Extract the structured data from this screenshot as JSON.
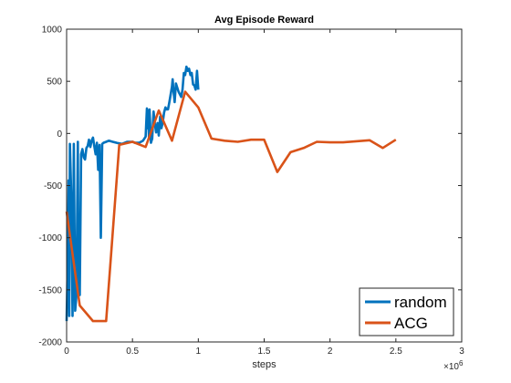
{
  "chart_data": {
    "type": "line",
    "title": "Avg Episode Reward",
    "xlabel": "steps",
    "ylabel": "",
    "x_multiplier": "×10",
    "x_exponent": "6",
    "xlim": [
      0,
      3
    ],
    "ylim": [
      -2000,
      1000
    ],
    "xticks": [
      0,
      0.5,
      1,
      1.5,
      2,
      2.5,
      3
    ],
    "xtick_labels": [
      "0",
      "0.5",
      "1",
      "1.5",
      "2",
      "2.5",
      "3"
    ],
    "yticks": [
      -2000,
      -1500,
      -1000,
      -500,
      0,
      500,
      1000
    ],
    "ytick_labels": [
      "-2000",
      "-1500",
      "-1000",
      "-500",
      "0",
      "500",
      "1000"
    ],
    "grid": false,
    "legend_position": "bottom-right",
    "series": [
      {
        "name": "random",
        "color": "#0072BD",
        "points": [
          [
            0.0,
            -1800
          ],
          [
            0.01,
            -1100
          ],
          [
            0.015,
            -450
          ],
          [
            0.02,
            -1750
          ],
          [
            0.025,
            -100
          ],
          [
            0.035,
            -600
          ],
          [
            0.045,
            -1750
          ],
          [
            0.05,
            -1200
          ],
          [
            0.055,
            -100
          ],
          [
            0.065,
            -1700
          ],
          [
            0.075,
            -1550
          ],
          [
            0.085,
            -80
          ],
          [
            0.09,
            -1400
          ],
          [
            0.1,
            -1550
          ],
          [
            0.11,
            -200
          ],
          [
            0.12,
            -150
          ],
          [
            0.13,
            -230
          ],
          [
            0.14,
            -250
          ],
          [
            0.15,
            -140
          ],
          [
            0.16,
            -120
          ],
          [
            0.17,
            -60
          ],
          [
            0.18,
            -130
          ],
          [
            0.19,
            -70
          ],
          [
            0.2,
            -40
          ],
          [
            0.21,
            -120
          ],
          [
            0.22,
            -200
          ],
          [
            0.23,
            -90
          ],
          [
            0.24,
            -350
          ],
          [
            0.25,
            -110
          ],
          [
            0.26,
            -1000
          ],
          [
            0.27,
            -100
          ],
          [
            0.28,
            -90
          ],
          [
            0.3,
            -80
          ],
          [
            0.32,
            -70
          ],
          [
            0.35,
            -80
          ],
          [
            0.38,
            -90
          ],
          [
            0.42,
            -100
          ],
          [
            0.46,
            -80
          ],
          [
            0.5,
            -80
          ],
          [
            0.52,
            -90
          ],
          [
            0.55,
            -90
          ],
          [
            0.58,
            -70
          ],
          [
            0.6,
            -30
          ],
          [
            0.61,
            240
          ],
          [
            0.615,
            50
          ],
          [
            0.62,
            220
          ],
          [
            0.625,
            -30
          ],
          [
            0.63,
            230
          ],
          [
            0.64,
            -90
          ],
          [
            0.65,
            -50
          ],
          [
            0.66,
            210
          ],
          [
            0.67,
            90
          ],
          [
            0.68,
            10
          ],
          [
            0.69,
            100
          ],
          [
            0.7,
            -20
          ],
          [
            0.71,
            160
          ],
          [
            0.72,
            50
          ],
          [
            0.73,
            110
          ],
          [
            0.74,
            200
          ],
          [
            0.75,
            250
          ],
          [
            0.76,
            230
          ],
          [
            0.77,
            230
          ],
          [
            0.78,
            300
          ],
          [
            0.8,
            450
          ],
          [
            0.805,
            520
          ],
          [
            0.81,
            430
          ],
          [
            0.82,
            300
          ],
          [
            0.83,
            480
          ],
          [
            0.85,
            400
          ],
          [
            0.87,
            350
          ],
          [
            0.88,
            420
          ],
          [
            0.89,
            580
          ],
          [
            0.9,
            560
          ],
          [
            0.91,
            640
          ],
          [
            0.92,
            600
          ],
          [
            0.93,
            620
          ],
          [
            0.94,
            560
          ],
          [
            0.95,
            580
          ],
          [
            0.96,
            470
          ],
          [
            0.97,
            460
          ],
          [
            0.98,
            420
          ],
          [
            0.99,
            600
          ],
          [
            1.0,
            420
          ]
        ]
      },
      {
        "name": "ACG",
        "color": "#D95319",
        "points": [
          [
            0.0,
            -750
          ],
          [
            0.05,
            -1200
          ],
          [
            0.1,
            -1650
          ],
          [
            0.2,
            -1800
          ],
          [
            0.3,
            -1800
          ],
          [
            0.4,
            -110
          ],
          [
            0.5,
            -80
          ],
          [
            0.6,
            -130
          ],
          [
            0.7,
            220
          ],
          [
            0.8,
            -70
          ],
          [
            0.9,
            400
          ],
          [
            1.0,
            250
          ],
          [
            1.1,
            -50
          ],
          [
            1.2,
            -70
          ],
          [
            1.3,
            -80
          ],
          [
            1.4,
            -60
          ],
          [
            1.5,
            -60
          ],
          [
            1.6,
            -370
          ],
          [
            1.7,
            -180
          ],
          [
            1.8,
            -140
          ],
          [
            1.9,
            -80
          ],
          [
            2.0,
            -85
          ],
          [
            2.1,
            -85
          ],
          [
            2.2,
            -75
          ],
          [
            2.3,
            -65
          ],
          [
            2.4,
            -140
          ],
          [
            2.5,
            -60
          ]
        ]
      }
    ]
  }
}
